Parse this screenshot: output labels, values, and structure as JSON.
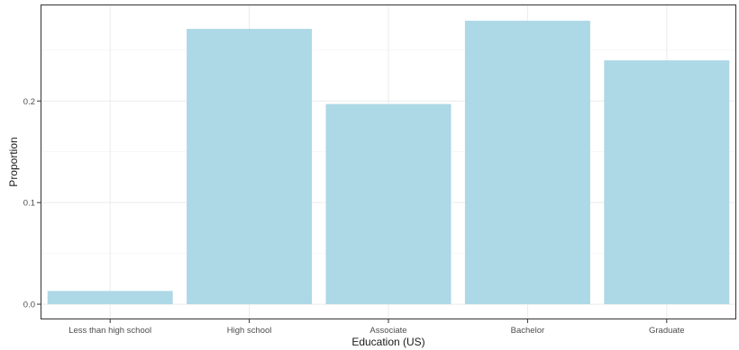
{
  "chart_data": {
    "type": "bar",
    "categories": [
      "Less than high school",
      "High school",
      "Associate",
      "Bachelor",
      "Graduate"
    ],
    "values": [
      0.013,
      0.271,
      0.197,
      0.279,
      0.24
    ],
    "xlabel": "Education (US)",
    "ylabel": "Proportion",
    "ylim": [
      -0.015,
      0.295
    ],
    "yticks": [
      0.0,
      0.1,
      0.2
    ],
    "ytick_labels": [
      "0.0",
      "0.1",
      "0.2"
    ],
    "bar_color": "#add8e6",
    "grid": true,
    "legend": "none"
  }
}
